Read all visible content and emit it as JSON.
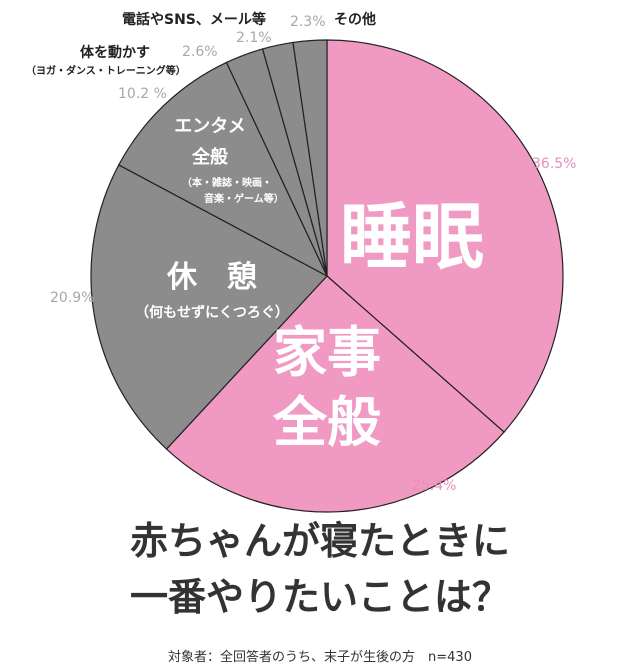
{
  "chart_data": {
    "type": "pie",
    "title_lines": [
      "赤ちゃんが寝たときに",
      "一番やりたいことは？"
    ],
    "note": "対象者：全回答者のうち、末子が生後の方　n=430",
    "start": "top",
    "direction": "clockwise",
    "slices": [
      {
        "label": "睡眠",
        "sublabel": "",
        "value": 36.5,
        "pct_label": "36.5%",
        "color": "#f09ac3"
      },
      {
        "label": "家事全般",
        "label_lines": [
          "家事",
          "全般"
        ],
        "value": 25.4,
        "pct_label": "25.4%",
        "color": "#f09ac3"
      },
      {
        "label": "休　憩",
        "sublabel": "（何もせずにくつろぐ）",
        "value": 20.9,
        "pct_label": "20.9%",
        "color": "#8c8c8c"
      },
      {
        "label_lines": [
          "エンタメ",
          "全般"
        ],
        "sublabel_lines": [
          "（本・雑誌・映画・",
          "音楽・ゲーム等）"
        ],
        "value": 10.2,
        "pct_label": "10.2 %",
        "color": "#8c8c8c"
      },
      {
        "label": "体を動かす",
        "sublabel": "（ヨガ・ダンス・トレーニング等）",
        "value": 2.6,
        "pct_label": "2.6%",
        "color": "#8c8c8c"
      },
      {
        "label": "電話やSNS、メール等",
        "value": 2.1,
        "pct_label": "2.1%",
        "color": "#8c8c8c"
      },
      {
        "label": "その他",
        "value": 2.3,
        "pct_label": "2.3%",
        "color": "#8c8c8c"
      }
    ],
    "pct_colors": {
      "pink": "#e98cbc",
      "gray": "#a8a8a8"
    }
  }
}
